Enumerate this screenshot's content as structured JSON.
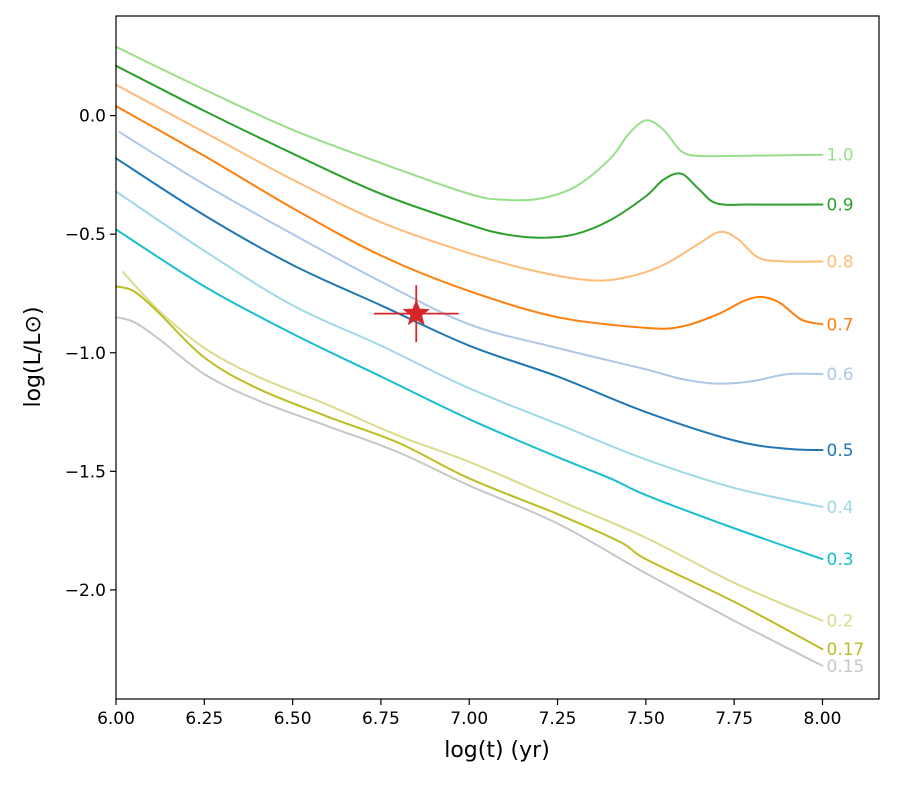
{
  "chart_data": {
    "type": "line",
    "title": "",
    "xlabel": "log(t) (yr)",
    "ylabel": "log(L/L⊙)",
    "xlim": [
      6.0,
      8.16
    ],
    "ylim": [
      -2.46,
      0.42
    ],
    "x_ticks": [
      6.0,
      6.25,
      6.5,
      6.75,
      7.0,
      7.25,
      7.5,
      7.75,
      8.0
    ],
    "x_tick_labels": [
      "6.00",
      "6.25",
      "6.50",
      "6.75",
      "7.00",
      "7.25",
      "7.50",
      "7.75",
      "8.00"
    ],
    "y_ticks": [
      0.0,
      -0.5,
      -1.0,
      -1.5,
      -2.0
    ],
    "y_tick_labels": [
      "0.0",
      "−0.5",
      "−1.0",
      "−1.5",
      "−2.0"
    ],
    "grid": false,
    "series": [
      {
        "name": "1.0",
        "color": "#98df8a",
        "points": [
          [
            6.0,
            0.29
          ],
          [
            6.25,
            0.11
          ],
          [
            6.5,
            -0.06
          ],
          [
            6.75,
            -0.2
          ],
          [
            7.0,
            -0.33
          ],
          [
            7.1,
            -0.355
          ],
          [
            7.2,
            -0.35
          ],
          [
            7.3,
            -0.3
          ],
          [
            7.4,
            -0.18
          ],
          [
            7.45,
            -0.08
          ],
          [
            7.5,
            -0.02
          ],
          [
            7.55,
            -0.06
          ],
          [
            7.6,
            -0.15
          ],
          [
            7.65,
            -0.17
          ],
          [
            7.75,
            -0.17
          ],
          [
            8.0,
            -0.165
          ]
        ]
      },
      {
        "name": "0.9",
        "color": "#2ca02c",
        "points": [
          [
            6.0,
            0.21
          ],
          [
            6.25,
            0.02
          ],
          [
            6.5,
            -0.16
          ],
          [
            6.75,
            -0.33
          ],
          [
            7.0,
            -0.46
          ],
          [
            7.1,
            -0.5
          ],
          [
            7.2,
            -0.515
          ],
          [
            7.3,
            -0.5
          ],
          [
            7.4,
            -0.44
          ],
          [
            7.5,
            -0.34
          ],
          [
            7.55,
            -0.27
          ],
          [
            7.6,
            -0.245
          ],
          [
            7.65,
            -0.31
          ],
          [
            7.7,
            -0.37
          ],
          [
            7.8,
            -0.375
          ],
          [
            8.0,
            -0.375
          ]
        ]
      },
      {
        "name": "0.8",
        "color": "#ffbb78",
        "points": [
          [
            6.0,
            0.13
          ],
          [
            6.25,
            -0.07
          ],
          [
            6.5,
            -0.27
          ],
          [
            6.75,
            -0.45
          ],
          [
            7.0,
            -0.58
          ],
          [
            7.2,
            -0.66
          ],
          [
            7.35,
            -0.695
          ],
          [
            7.45,
            -0.68
          ],
          [
            7.55,
            -0.63
          ],
          [
            7.65,
            -0.54
          ],
          [
            7.71,
            -0.49
          ],
          [
            7.76,
            -0.52
          ],
          [
            7.82,
            -0.6
          ],
          [
            7.9,
            -0.615
          ],
          [
            8.0,
            -0.615
          ]
        ]
      },
      {
        "name": "0.7",
        "color": "#ff7f0e",
        "points": [
          [
            6.0,
            0.04
          ],
          [
            6.25,
            -0.17
          ],
          [
            6.5,
            -0.39
          ],
          [
            6.75,
            -0.59
          ],
          [
            7.0,
            -0.74
          ],
          [
            7.25,
            -0.85
          ],
          [
            7.5,
            -0.895
          ],
          [
            7.6,
            -0.89
          ],
          [
            7.7,
            -0.84
          ],
          [
            7.78,
            -0.78
          ],
          [
            7.83,
            -0.765
          ],
          [
            7.88,
            -0.79
          ],
          [
            7.94,
            -0.86
          ],
          [
            8.0,
            -0.88
          ]
        ]
      },
      {
        "name": "0.6",
        "color": "#aec7e8",
        "points": [
          [
            6.01,
            -0.07
          ],
          [
            6.25,
            -0.29
          ],
          [
            6.5,
            -0.5
          ],
          [
            6.75,
            -0.7
          ],
          [
            7.0,
            -0.88
          ],
          [
            7.25,
            -0.98
          ],
          [
            7.5,
            -1.07
          ],
          [
            7.6,
            -1.11
          ],
          [
            7.7,
            -1.13
          ],
          [
            7.8,
            -1.12
          ],
          [
            7.9,
            -1.09
          ],
          [
            8.0,
            -1.09
          ]
        ]
      },
      {
        "name": "0.5",
        "color": "#1f77b4",
        "points": [
          [
            6.0,
            -0.18
          ],
          [
            6.25,
            -0.42
          ],
          [
            6.5,
            -0.63
          ],
          [
            6.75,
            -0.8
          ],
          [
            7.0,
            -0.97
          ],
          [
            7.25,
            -1.1
          ],
          [
            7.5,
            -1.25
          ],
          [
            7.75,
            -1.37
          ],
          [
            7.9,
            -1.405
          ],
          [
            8.0,
            -1.41
          ]
        ]
      },
      {
        "name": "0.4",
        "color": "#9edae5",
        "points": [
          [
            6.0,
            -0.32
          ],
          [
            6.25,
            -0.57
          ],
          [
            6.5,
            -0.8
          ],
          [
            6.75,
            -0.97
          ],
          [
            7.0,
            -1.15
          ],
          [
            7.25,
            -1.3
          ],
          [
            7.5,
            -1.45
          ],
          [
            7.75,
            -1.57
          ],
          [
            8.0,
            -1.65
          ]
        ]
      },
      {
        "name": "0.3",
        "color": "#17becf",
        "points": [
          [
            6.0,
            -0.48
          ],
          [
            6.25,
            -0.72
          ],
          [
            6.5,
            -0.92
          ],
          [
            6.75,
            -1.1
          ],
          [
            7.0,
            -1.28
          ],
          [
            7.25,
            -1.44
          ],
          [
            7.4,
            -1.53
          ],
          [
            7.5,
            -1.6
          ],
          [
            7.75,
            -1.74
          ],
          [
            8.0,
            -1.87
          ]
        ]
      },
      {
        "name": "0.2",
        "color": "#dbdb8d",
        "points": [
          [
            6.02,
            -0.66
          ],
          [
            6.12,
            -0.82
          ],
          [
            6.25,
            -0.98
          ],
          [
            6.4,
            -1.1
          ],
          [
            6.6,
            -1.22
          ],
          [
            6.8,
            -1.35
          ],
          [
            7.0,
            -1.46
          ],
          [
            7.25,
            -1.62
          ],
          [
            7.5,
            -1.78
          ],
          [
            7.75,
            -1.97
          ],
          [
            8.0,
            -2.13
          ]
        ]
      },
      {
        "name": "0.17",
        "color": "#bcbd22",
        "points": [
          [
            6.0,
            -0.72
          ],
          [
            6.05,
            -0.74
          ],
          [
            6.12,
            -0.83
          ],
          [
            6.25,
            -1.02
          ],
          [
            6.4,
            -1.15
          ],
          [
            6.6,
            -1.27
          ],
          [
            6.8,
            -1.38
          ],
          [
            7.0,
            -1.53
          ],
          [
            7.25,
            -1.68
          ],
          [
            7.43,
            -1.8
          ],
          [
            7.5,
            -1.87
          ],
          [
            7.75,
            -2.05
          ],
          [
            8.0,
            -2.25
          ]
        ]
      },
      {
        "name": "0.15",
        "color": "#c7c7c7",
        "points": [
          [
            6.0,
            -0.85
          ],
          [
            6.05,
            -0.87
          ],
          [
            6.12,
            -0.94
          ],
          [
            6.25,
            -1.09
          ],
          [
            6.4,
            -1.2
          ],
          [
            6.6,
            -1.31
          ],
          [
            6.8,
            -1.42
          ],
          [
            7.0,
            -1.56
          ],
          [
            7.25,
            -1.72
          ],
          [
            7.5,
            -1.93
          ],
          [
            7.75,
            -2.13
          ],
          [
            8.0,
            -2.32
          ]
        ]
      }
    ],
    "observation": {
      "marker": "star",
      "color": "#d62728",
      "x": 6.85,
      "y": -0.835,
      "x_err": 0.12,
      "y_err": 0.12
    }
  }
}
